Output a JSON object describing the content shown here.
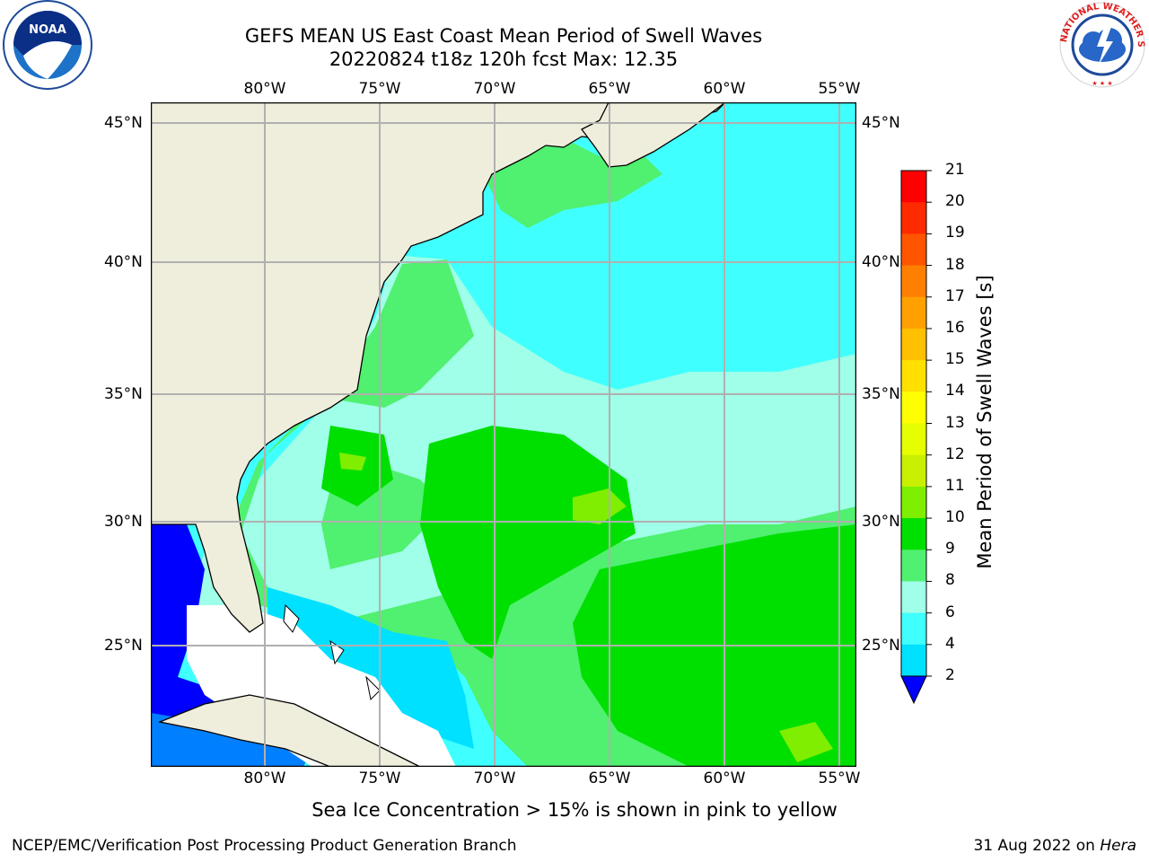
{
  "title": {
    "line1": "GEFS MEAN US East Coast Mean Period of Swell Waves",
    "line2": "20220824 t18z 120h fcst   Max: 12.35"
  },
  "logos": {
    "left": {
      "icon": "noaa-logo",
      "text": "NOAA"
    },
    "right": {
      "icon": "national-weather-service-logo",
      "text": "NATIONAL WEATHER SERVICE"
    }
  },
  "map": {
    "lon_labels_top": [
      "80°W",
      "75°W",
      "70°W",
      "65°W",
      "60°W",
      "55°W"
    ],
    "lon_labels_bottom": [
      "80°W",
      "75°W",
      "70°W",
      "65°W",
      "60°W",
      "55°W"
    ],
    "lat_labels_left": [
      "45°N",
      "40°N",
      "35°N",
      "30°N",
      "25°N"
    ],
    "lat_labels_right": [
      "45°N",
      "40°N",
      "35°N",
      "30°N",
      "25°N"
    ],
    "colors": {
      "land": "#efeedc",
      "no_data": "#ffffff",
      "grid": "#b0b0b0"
    }
  },
  "colorbar": {
    "title": "Mean Period of Swell Waves [s]",
    "ticks": [
      "21",
      "20",
      "19",
      "18",
      "17",
      "16",
      "15",
      "14",
      "13",
      "12",
      "11",
      "10",
      "9",
      "8",
      "6",
      "4",
      "2"
    ],
    "colors_top_to_bottom": [
      "#ff0000",
      "#ff2a00",
      "#ff5500",
      "#ff8000",
      "#ffa000",
      "#ffc000",
      "#ffe000",
      "#ffff00",
      "#e6ff00",
      "#c8f000",
      "#80ee00",
      "#00e000",
      "#50f070",
      "#a0ffe8",
      "#40ffff",
      "#00e0ff",
      "#0080ff"
    ],
    "under_color": "#0000ff"
  },
  "caption": "Sea Ice Concentration > 15% is shown in pink to yellow",
  "footer": {
    "left": "NCEP/EMC/Verification Post Processing Product Generation Branch",
    "right_date": "31 Aug 2022 on",
    "right_host": "Hera"
  }
}
